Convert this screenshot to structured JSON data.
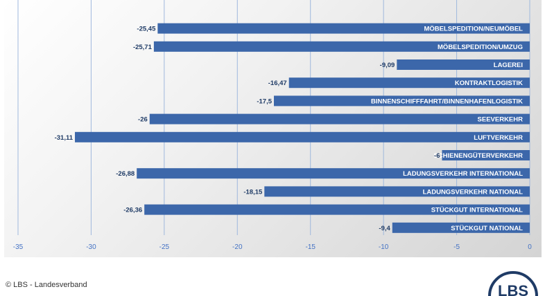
{
  "chart_data": {
    "type": "bar",
    "orientation": "horizontal",
    "categories": [
      "MÖBELSPEDITION/NEUMÖBEL",
      "MÖBELSPEDITION/UMZUG",
      "LAGEREI",
      "KONTRAKTLOGISTIK",
      "BINNENSCHIFFFAHRT/BINNENHAFENLOGISTIK",
      "SEEVERKEHR",
      "LUFTVERKEHR",
      "SCHIENENGÜTERVERKEHR",
      "LADUNGSVERKEHR INTERNATIONAL",
      "LADUNGSVERKEHR NATIONAL",
      "STÜCKGUT INTERNATIONAL",
      "STÜCKGUT NATIONAL"
    ],
    "values": [
      -25.45,
      -25.71,
      -9.09,
      -16.47,
      -17.5,
      -26,
      -31.11,
      -6,
      -26.88,
      -18.15,
      -26.36,
      -9.4
    ],
    "value_labels": [
      "-25,45",
      "-25,71",
      "-9,09",
      "-16,47",
      "-17,5",
      "-26",
      "-31,11",
      "-6",
      "-26,88",
      "-18,15",
      "-26,36",
      "-9,4"
    ],
    "xlim": [
      -35,
      0
    ],
    "xticks": [
      -35,
      -30,
      -25,
      -20,
      -15,
      -10,
      -5,
      0
    ],
    "xtick_labels": [
      "-35",
      "-30",
      "-25",
      "-20",
      "-15",
      "-10",
      "-5",
      "0"
    ],
    "grid": true,
    "bar_color": "#3c67aa",
    "title": "",
    "xlabel": "",
    "ylabel": ""
  },
  "footer": {
    "copyright": "© LBS - Landesverband",
    "logo_text": "LBS"
  }
}
